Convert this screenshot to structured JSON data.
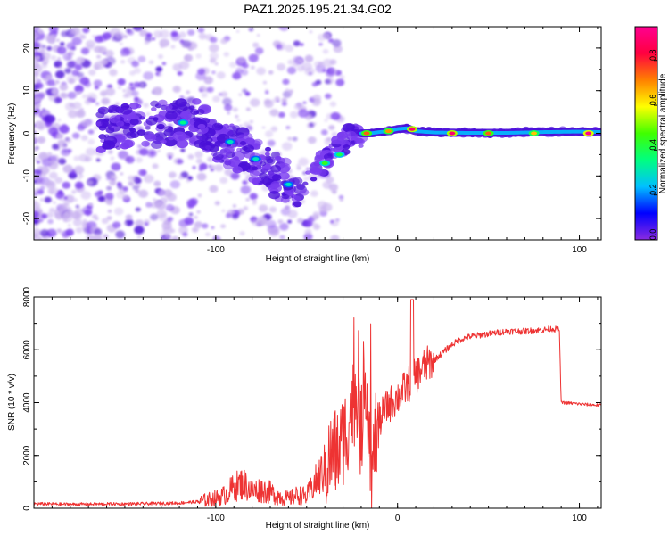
{
  "title": "PAZ1.2025.195.21.34.G02",
  "colors": {
    "snr_line": "#ee3333",
    "spectrum_light": "#c8b0f0",
    "spectrum_mid": "#7a3cf0",
    "spectrum_dark": "#4a10d8"
  },
  "chart_data": [
    {
      "type": "heatmap",
      "xlabel": "Height of straight line (km)",
      "ylabel": "Frequency (Hz)",
      "xlim": [
        -200,
        112
      ],
      "ylim": [
        -25,
        25
      ],
      "xticks": [
        -100,
        0,
        100
      ],
      "yticks": [
        -20,
        -10,
        0,
        10,
        20
      ],
      "colorbar": {
        "label": "Normalized spectral amplitude",
        "range": [
          0,
          0.95
        ],
        "ticks": [
          0.0,
          0.2,
          0.4,
          0.6,
          0.8
        ],
        "colormap": [
          "#8a2be2",
          "#0000ff",
          "#00c0ff",
          "#00ff80",
          "#40ff00",
          "#ffff00",
          "#ff8000",
          "#ff0040",
          "#ff0090"
        ]
      },
      "ridge": {
        "x": [
          -160,
          -140,
          -120,
          -110,
          -100,
          -90,
          -80,
          -70,
          -60,
          -55,
          -50,
          -45,
          -40,
          -35,
          -30,
          -25,
          -20,
          -15,
          -10,
          -5,
          0,
          5,
          10,
          20,
          40,
          60,
          80,
          100,
          112
        ],
        "y": [
          1,
          2,
          2.5,
          2.5,
          -1,
          -3,
          -6,
          -9,
          -12,
          -14,
          -12,
          -9,
          -7,
          -5,
          -2,
          -0.5,
          0,
          0,
          0.3,
          0.5,
          1,
          1.2,
          0.5,
          0.2,
          0.1,
          0.1,
          0.3,
          0.4,
          0.3
        ]
      },
      "bright_spots": [
        {
          "x": -118,
          "y": 2.5,
          "level": 0.35
        },
        {
          "x": -92,
          "y": -2,
          "level": 0.3
        },
        {
          "x": -78,
          "y": -6,
          "level": 0.3
        },
        {
          "x": -60,
          "y": -12,
          "level": 0.3
        },
        {
          "x": -40,
          "y": -7,
          "level": 0.45
        },
        {
          "x": -32,
          "y": -5,
          "level": 0.4
        },
        {
          "x": -17,
          "y": 0,
          "level": 0.75
        },
        {
          "x": -5,
          "y": 0.5,
          "level": 0.7
        },
        {
          "x": 8,
          "y": 1,
          "level": 0.9
        },
        {
          "x": 30,
          "y": 0,
          "level": 0.9
        },
        {
          "x": 50,
          "y": 0,
          "level": 0.75
        },
        {
          "x": 75,
          "y": 0,
          "level": 0.65
        },
        {
          "x": 105,
          "y": 0,
          "level": 0.95
        }
      ]
    },
    {
      "type": "line",
      "xlabel": "Height of straight line (km)",
      "ylabel": "SNR (10 * v/v)",
      "xlim": [
        -200,
        112
      ],
      "ylim": [
        0,
        8000
      ],
      "xticks": [
        -100,
        0,
        100
      ],
      "yticks": [
        0,
        2000,
        4000,
        6000,
        8000
      ],
      "series": [
        {
          "x": [
            -200,
            -180,
            -160,
            -140,
            -120,
            -110,
            -100,
            -95,
            -90,
            -85,
            -80,
            -75,
            -70,
            -65,
            -60,
            -55,
            -50,
            -45,
            -40,
            -36,
            -32,
            -28,
            -25,
            -22,
            -20,
            -18,
            -16,
            -14,
            -12,
            -10,
            -8,
            -5,
            0,
            5,
            10,
            15,
            20,
            25,
            30,
            35,
            40,
            50,
            60,
            70,
            80,
            85,
            89,
            90,
            95,
            100,
            105,
            112
          ],
          "y": [
            170,
            150,
            160,
            170,
            200,
            250,
            380,
            500,
            800,
            950,
            650,
            700,
            600,
            450,
            350,
            500,
            450,
            1000,
            1500,
            2000,
            2200,
            3000,
            3800,
            4500,
            2500,
            5500,
            3500,
            1200,
            2800,
            3300,
            3600,
            3900,
            4200,
            4600,
            5000,
            5400,
            5600,
            5900,
            6200,
            6400,
            6500,
            6600,
            6700,
            6700,
            6750,
            6800,
            6750,
            4000,
            3980,
            3950,
            3920,
            3900
          ]
        }
      ]
    }
  ]
}
